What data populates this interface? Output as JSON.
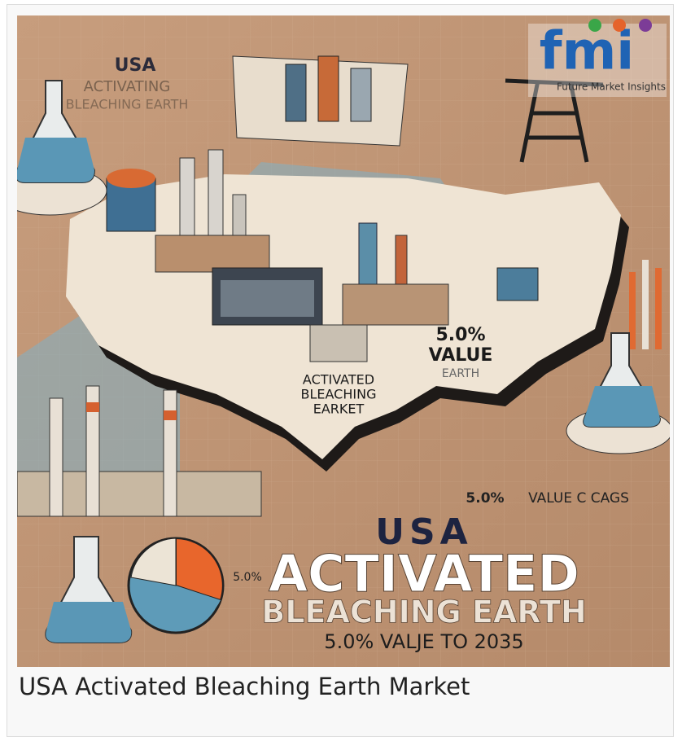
{
  "image": {
    "logo": {
      "brand": "fmi",
      "tagline": "Future Market Insights"
    },
    "corner_title": {
      "line1": "USA",
      "line2": "ACTIVATING",
      "line3": "BLEACHING EARTH"
    },
    "map_label": {
      "line1": "ACTIVATED",
      "line2": "BLEACHING",
      "line3": "EARKET"
    },
    "map_stat": {
      "line1": "5.0%",
      "line2": "VALUE",
      "line3": "EARTH"
    },
    "pie_label": "5.0%",
    "side_stat": {
      "value": "5.0%",
      "text": "VALUE C CAGS"
    },
    "headline": {
      "line1": "USA",
      "line2": "ACTIVATED",
      "line3": "BLEACHING EARTH",
      "line4": "5.0% VALJE TO 2035"
    }
  },
  "caption": "USA Activated Bleaching Earth Market"
}
